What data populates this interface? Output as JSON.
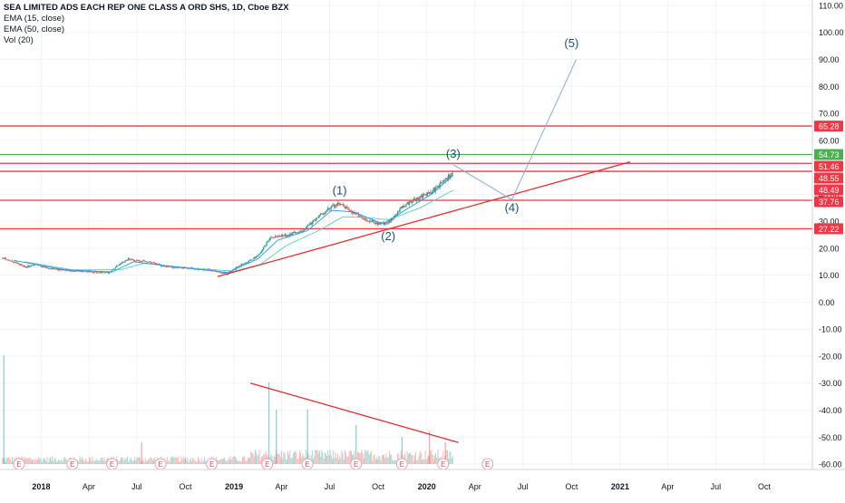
{
  "chart_data": {
    "type": "candlestick",
    "title": "SEA LIMITED ADS EACH REP ONE CLASS A ORD SHS, 1D, Cboe BZX",
    "indicators": [
      "EMA (15, close)",
      "EMA (50, close)",
      "Vol (20)"
    ],
    "price_axis": {
      "ylim": [
        -62,
        112
      ],
      "ticks": [
        110,
        100,
        90,
        80,
        70,
        60,
        50,
        40,
        30,
        20,
        10,
        0,
        -10,
        -20,
        -30,
        -40,
        -50,
        -60
      ],
      "tick_labels": [
        "110.00",
        "100.00",
        "90.00",
        "80.00",
        "70.00",
        "60.00",
        "50.00",
        "40.00",
        "30.00",
        "20.00",
        "10.00",
        "0.00",
        "-10.00",
        "-20.00",
        "-30.00",
        "-40.00",
        "-50.00",
        "-60.00"
      ]
    },
    "time_axis": {
      "xlim": [
        "2017-10-15",
        "2021-12-31"
      ],
      "ticks": [
        {
          "date": "2018-01-01",
          "label": "2018",
          "bold": true
        },
        {
          "date": "2018-04-01",
          "label": "Apr",
          "bold": false
        },
        {
          "date": "2018-07-01",
          "label": "Jul",
          "bold": false
        },
        {
          "date": "2018-10-01",
          "label": "Oct",
          "bold": false
        },
        {
          "date": "2019-01-01",
          "label": "2019",
          "bold": true
        },
        {
          "date": "2019-04-01",
          "label": "Apr",
          "bold": false
        },
        {
          "date": "2019-07-01",
          "label": "Jul",
          "bold": false
        },
        {
          "date": "2019-10-01",
          "label": "Oct",
          "bold": false
        },
        {
          "date": "2020-01-01",
          "label": "2020",
          "bold": true
        },
        {
          "date": "2020-04-01",
          "label": "Apr",
          "bold": false
        },
        {
          "date": "2020-07-01",
          "label": "Jul",
          "bold": false
        },
        {
          "date": "2020-10-01",
          "label": "Oct",
          "bold": false
        },
        {
          "date": "2021-01-01",
          "label": "2021",
          "bold": true
        },
        {
          "date": "2021-04-01",
          "label": "Apr",
          "bold": false
        },
        {
          "date": "2021-07-01",
          "label": "Jul",
          "bold": false
        },
        {
          "date": "2021-10-01",
          "label": "Oct",
          "bold": false
        }
      ]
    },
    "price_path": [
      [
        "2017-10-20",
        16.5
      ],
      [
        "2017-11-10",
        15.0
      ],
      [
        "2017-12-01",
        13.0
      ],
      [
        "2017-12-20",
        14.0
      ],
      [
        "2018-01-15",
        12.5
      ],
      [
        "2018-02-15",
        12.0
      ],
      [
        "2018-03-15",
        11.5
      ],
      [
        "2018-04-15",
        11.2
      ],
      [
        "2018-05-10",
        11.0
      ],
      [
        "2018-05-25",
        13.5
      ],
      [
        "2018-06-15",
        16.0
      ],
      [
        "2018-07-01",
        15.5
      ],
      [
        "2018-07-25",
        15.0
      ],
      [
        "2018-08-15",
        13.5
      ],
      [
        "2018-09-10",
        13.0
      ],
      [
        "2018-10-15",
        12.5
      ],
      [
        "2018-11-15",
        12.0
      ],
      [
        "2018-12-20",
        10.5
      ],
      [
        "2019-01-15",
        14.0
      ],
      [
        "2019-02-15",
        17.0
      ],
      [
        "2019-03-01",
        21.0
      ],
      [
        "2019-03-10",
        24.0
      ],
      [
        "2019-04-15",
        25.0
      ],
      [
        "2019-05-15",
        27.0
      ],
      [
        "2019-06-05",
        31.0
      ],
      [
        "2019-07-01",
        35.0
      ],
      [
        "2019-07-20",
        36.5
      ],
      [
        "2019-08-15",
        33.0
      ],
      [
        "2019-09-10",
        30.5
      ],
      [
        "2019-10-05",
        29.0
      ],
      [
        "2019-10-25",
        30.0
      ],
      [
        "2019-11-15",
        35.5
      ],
      [
        "2019-12-10",
        38.0
      ],
      [
        "2020-01-10",
        41.0
      ],
      [
        "2020-02-05",
        45.0
      ],
      [
        "2020-02-20",
        48.5
      ]
    ],
    "ema_15_path": [
      [
        "2017-11-10",
        15.5
      ],
      [
        "2018-02-15",
        12.0
      ],
      [
        "2018-05-15",
        11.2
      ],
      [
        "2018-06-25",
        15.0
      ],
      [
        "2018-09-15",
        13.0
      ],
      [
        "2018-12-20",
        11.0
      ],
      [
        "2019-02-15",
        16.0
      ],
      [
        "2019-03-25",
        23.0
      ],
      [
        "2019-05-20",
        26.5
      ],
      [
        "2019-07-05",
        34.0
      ],
      [
        "2019-08-15",
        33.5
      ],
      [
        "2019-10-10",
        29.0
      ],
      [
        "2019-11-20",
        34.0
      ],
      [
        "2020-01-10",
        40.0
      ],
      [
        "2020-02-20",
        47.0
      ]
    ],
    "ema_50_path": [
      [
        "2017-12-01",
        15.0
      ],
      [
        "2018-03-01",
        12.0
      ],
      [
        "2018-06-01",
        12.0
      ],
      [
        "2018-07-15",
        14.5
      ],
      [
        "2018-10-15",
        12.5
      ],
      [
        "2019-01-01",
        11.5
      ],
      [
        "2019-02-20",
        14.0
      ],
      [
        "2019-04-10",
        21.0
      ],
      [
        "2019-06-10",
        26.5
      ],
      [
        "2019-07-25",
        31.5
      ],
      [
        "2019-09-01",
        31.5
      ],
      [
        "2019-10-20",
        30.5
      ],
      [
        "2019-12-20",
        35.0
      ],
      [
        "2020-02-20",
        41.5
      ]
    ],
    "horizontal_levels": [
      {
        "price": 65.28,
        "label": "65.28",
        "color": "#f23645"
      },
      {
        "price": 54.73,
        "label": "54.73",
        "color": "#4caf50"
      },
      {
        "price": 51.46,
        "label": "51.46",
        "color": "#f23645"
      },
      {
        "price": 48.49,
        "label": "48.49",
        "color": "#f23645"
      },
      {
        "price": 37.76,
        "label": "37.76",
        "color": "#f23645"
      },
      {
        "price": 27.22,
        "label": "27.22",
        "color": "#f23645"
      }
    ],
    "last_price": {
      "price": 48.55,
      "label": "48.55",
      "color": "#f23645"
    },
    "trendlines": [
      {
        "color": "#e03030",
        "from": [
          "2018-12-01",
          9.5
        ],
        "to": [
          "2021-01-20",
          52.0
        ]
      },
      {
        "color": "#e03030",
        "from": [
          "2019-02-01",
          -30.0
        ],
        "to": [
          "2020-03-01",
          -52.0
        ]
      }
    ],
    "wave_projection": {
      "color": "#85aede",
      "points": [
        [
          "2020-02-20",
          51.0
        ],
        [
          "2020-06-10",
          38.0
        ],
        [
          "2020-10-10",
          90.0
        ]
      ]
    },
    "wave_labels": [
      {
        "text": "(1)",
        "date": "2019-07-20",
        "price": 40.0
      },
      {
        "text": "(2)",
        "date": "2019-10-20",
        "price": 23.0
      },
      {
        "text": "(3)",
        "date": "2020-02-20",
        "price": 53.5
      },
      {
        "text": "(4)",
        "date": "2020-06-10",
        "price": 33.5
      },
      {
        "text": "(5)",
        "date": "2020-10-01",
        "price": 94.5
      }
    ],
    "earnings_markers": {
      "label": "E",
      "dates": [
        "2017-11-20",
        "2018-03-01",
        "2018-05-15",
        "2018-08-15",
        "2018-11-20",
        "2019-03-05",
        "2019-05-20",
        "2019-08-20",
        "2019-11-15",
        "2020-02-01",
        "2020-04-25"
      ]
    },
    "volume_spikes": [
      [
        "2017-10-22",
        1.0
      ],
      [
        "2018-07-10",
        0.2
      ],
      [
        "2019-03-08",
        0.75
      ],
      [
        "2019-03-22",
        0.5
      ],
      [
        "2019-05-20",
        0.5
      ],
      [
        "2019-08-20",
        0.36
      ],
      [
        "2019-11-15",
        0.25
      ],
      [
        "2020-01-06",
        0.3
      ],
      [
        "2020-02-05",
        0.2
      ]
    ]
  },
  "colors": {
    "up": "#26a69a",
    "down": "#ef5350",
    "ema15": "#2196f3",
    "ema50": "#4dd0c7",
    "axis_text": "#131722",
    "grid": "#f0f3fa"
  }
}
